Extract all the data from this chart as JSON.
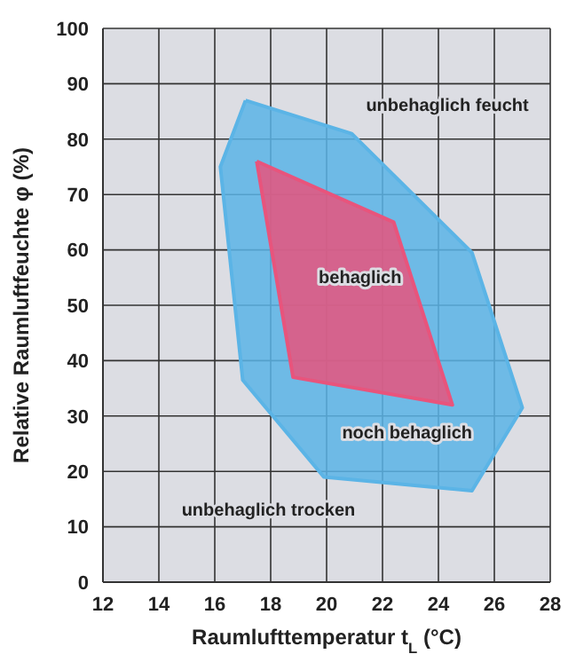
{
  "chart_data": {
    "type": "area",
    "xlabel": "Raumlufttemperatur t$_{L}$ (°C)",
    "ylabel": "Relative Raumluftfeuchte φ (%)",
    "xlim": [
      12,
      28
    ],
    "xticks": [
      12,
      14,
      16,
      18,
      20,
      22,
      24,
      26,
      28
    ],
    "ylim": [
      0,
      100
    ],
    "yticks": [
      0,
      10,
      20,
      30,
      40,
      50,
      60,
      70,
      80,
      90,
      100
    ],
    "grid": true,
    "legend": false,
    "marker": "none",
    "series": [
      {
        "color": "#5bb4e6",
        "x": [
          17.1,
          20.9,
          25.2,
          27.0,
          25.2,
          19.9,
          17.0,
          16.2
        ],
        "values": [
          87,
          81,
          59.5,
          31.5,
          16.5,
          19,
          36.5,
          75
        ]
      },
      {
        "color": "#e8547c",
        "x": [
          17.5,
          22.4,
          24.5,
          18.8
        ],
        "values": [
          76,
          65,
          32,
          37
        ]
      }
    ],
    "annotations": [
      "unbehaglich feucht",
      "behaglich",
      "noch behaglich",
      "unbehaglich trocken"
    ]
  }
}
